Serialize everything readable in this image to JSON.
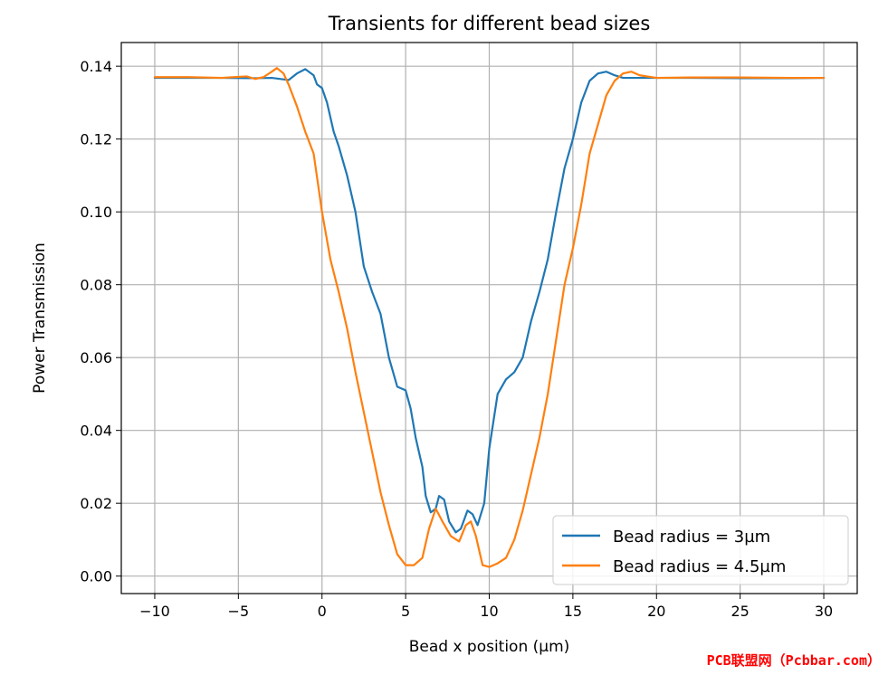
{
  "chart_data": {
    "type": "line",
    "title": "Transients for different bead sizes",
    "xlabel": "Bead x position (µm)",
    "ylabel": "Power Transmission",
    "xlim": [
      -12.0,
      32.0
    ],
    "ylim": [
      -0.0048,
      0.1465
    ],
    "xticks": [
      -10,
      -5,
      0,
      5,
      10,
      15,
      20,
      25,
      30
    ],
    "xtick_labels": [
      "−10",
      "−5",
      "0",
      "5",
      "10",
      "15",
      "20",
      "25",
      "30"
    ],
    "yticks": [
      0.0,
      0.02,
      0.04,
      0.06,
      0.08,
      0.1,
      0.12,
      0.14
    ],
    "ytick_labels": [
      "0.00",
      "0.02",
      "0.04",
      "0.06",
      "0.08",
      "0.10",
      "0.12",
      "0.14"
    ],
    "grid": true,
    "legend_position": "lower-right",
    "series": [
      {
        "name": "Bead radius = 3µm",
        "color": "#1f77b4",
        "points": [
          [
            -10,
            0.1368
          ],
          [
            -8,
            0.1368
          ],
          [
            -6,
            0.1368
          ],
          [
            -4,
            0.1367
          ],
          [
            -3,
            0.1368
          ],
          [
            -2,
            0.1362
          ],
          [
            -1.5,
            0.138
          ],
          [
            -1,
            0.1392
          ],
          [
            -0.5,
            0.1375
          ],
          [
            -0.3,
            0.135
          ],
          [
            0,
            0.134
          ],
          [
            0.3,
            0.13
          ],
          [
            0.7,
            0.122
          ],
          [
            1,
            0.118
          ],
          [
            1.5,
            0.11
          ],
          [
            2,
            0.1
          ],
          [
            2.5,
            0.085
          ],
          [
            3,
            0.078
          ],
          [
            3.5,
            0.072
          ],
          [
            4,
            0.06
          ],
          [
            4.5,
            0.052
          ],
          [
            5,
            0.051
          ],
          [
            5.3,
            0.046
          ],
          [
            5.6,
            0.038
          ],
          [
            6,
            0.03
          ],
          [
            6.2,
            0.022
          ],
          [
            6.5,
            0.0175
          ],
          [
            6.8,
            0.0185
          ],
          [
            7.0,
            0.022
          ],
          [
            7.3,
            0.021
          ],
          [
            7.6,
            0.015
          ],
          [
            8.0,
            0.012
          ],
          [
            8.3,
            0.013
          ],
          [
            8.7,
            0.018
          ],
          [
            9.0,
            0.017
          ],
          [
            9.3,
            0.014
          ],
          [
            9.7,
            0.02
          ],
          [
            10,
            0.035
          ],
          [
            10.5,
            0.05
          ],
          [
            11,
            0.054
          ],
          [
            11.5,
            0.056
          ],
          [
            12,
            0.06
          ],
          [
            12.5,
            0.07
          ],
          [
            13,
            0.078
          ],
          [
            13.5,
            0.087
          ],
          [
            14,
            0.1
          ],
          [
            14.5,
            0.112
          ],
          [
            15,
            0.12
          ],
          [
            15.5,
            0.13
          ],
          [
            16,
            0.136
          ],
          [
            16.5,
            0.138
          ],
          [
            17,
            0.1385
          ],
          [
            17.5,
            0.1375
          ],
          [
            18,
            0.1368
          ],
          [
            20,
            0.1368
          ],
          [
            22,
            0.1368
          ],
          [
            25,
            0.1367
          ],
          [
            28,
            0.1367
          ],
          [
            30,
            0.1368
          ]
        ]
      },
      {
        "name": "Bead radius = 4.5µm",
        "color": "#ff7f0e",
        "points": [
          [
            -10,
            0.137
          ],
          [
            -8,
            0.137
          ],
          [
            -6,
            0.1368
          ],
          [
            -4.5,
            0.1372
          ],
          [
            -4,
            0.1365
          ],
          [
            -3.5,
            0.137
          ],
          [
            -3,
            0.1385
          ],
          [
            -2.7,
            0.1395
          ],
          [
            -2.3,
            0.138
          ],
          [
            -2,
            0.135
          ],
          [
            -1.5,
            0.129
          ],
          [
            -1,
            0.122
          ],
          [
            -0.5,
            0.116
          ],
          [
            0,
            0.1
          ],
          [
            0.5,
            0.087
          ],
          [
            1,
            0.078
          ],
          [
            1.5,
            0.068
          ],
          [
            2,
            0.056
          ],
          [
            2.5,
            0.045
          ],
          [
            3,
            0.034
          ],
          [
            3.5,
            0.023
          ],
          [
            4,
            0.014
          ],
          [
            4.5,
            0.006
          ],
          [
            5,
            0.003
          ],
          [
            5.5,
            0.003
          ],
          [
            6,
            0.005
          ],
          [
            6.4,
            0.013
          ],
          [
            6.8,
            0.0185
          ],
          [
            7.2,
            0.015
          ],
          [
            7.7,
            0.011
          ],
          [
            8.2,
            0.0095
          ],
          [
            8.6,
            0.014
          ],
          [
            8.9,
            0.015
          ],
          [
            9.2,
            0.011
          ],
          [
            9.6,
            0.003
          ],
          [
            10,
            0.0025
          ],
          [
            10.5,
            0.0035
          ],
          [
            11,
            0.005
          ],
          [
            11.5,
            0.01
          ],
          [
            12,
            0.018
          ],
          [
            12.5,
            0.028
          ],
          [
            13,
            0.038
          ],
          [
            13.5,
            0.05
          ],
          [
            14,
            0.065
          ],
          [
            14.5,
            0.08
          ],
          [
            15,
            0.09
          ],
          [
            15.5,
            0.102
          ],
          [
            16,
            0.116
          ],
          [
            16.5,
            0.124
          ],
          [
            17,
            0.132
          ],
          [
            17.5,
            0.136
          ],
          [
            18,
            0.138
          ],
          [
            18.5,
            0.1385
          ],
          [
            19,
            0.1375
          ],
          [
            20,
            0.1368
          ],
          [
            22,
            0.1369
          ],
          [
            25,
            0.1369
          ],
          [
            28,
            0.1368
          ],
          [
            30,
            0.1368
          ]
        ]
      }
    ]
  },
  "watermark": "PCB联盟网（Pcbbar.com）"
}
